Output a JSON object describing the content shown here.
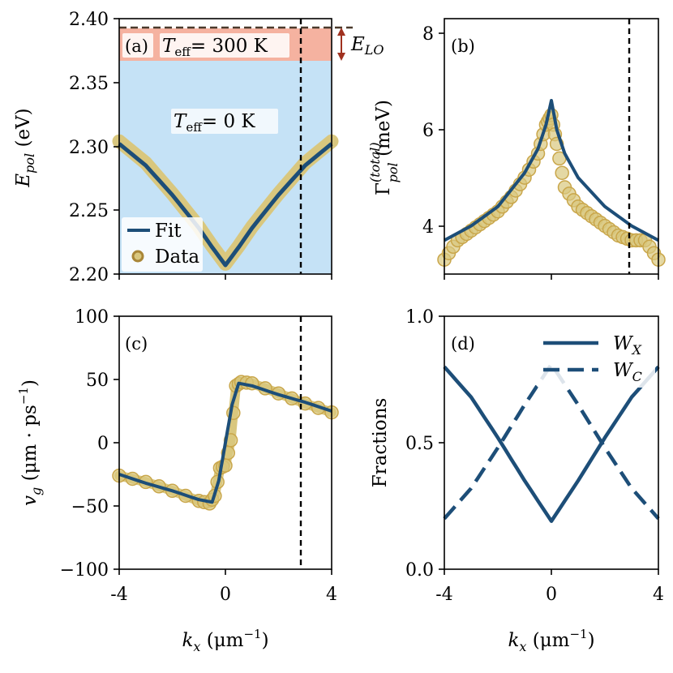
{
  "colors": {
    "fit": "#1d4e78",
    "data_fill": "#d9c77e",
    "data_edge": "#c9a64a",
    "cold_region": "#c5e2f6",
    "hot_region": "#f5b2a0",
    "arrow": "#a0311f"
  },
  "chart_data": [
    {
      "panel": "(a)",
      "type": "line",
      "xlabel": "",
      "ylabel": "E_pol (eV)",
      "xlim": [
        -4,
        4
      ],
      "ylim": [
        2.2,
        2.4
      ],
      "xticks": [
        -4,
        0,
        4
      ],
      "yticks": [
        "2.20",
        "2.25",
        "2.30",
        "2.35",
        "2.40"
      ],
      "regions": [
        {
          "name": "T_eff = 0 K",
          "ymin": 2.2,
          "ymax": 2.3705
        },
        {
          "name": "T_eff = 300 K",
          "ymin": 2.3705,
          "ymax": 2.394
        }
      ],
      "hline": 2.394,
      "vline": 2.8,
      "annotations": [
        "(a)",
        "T_eff = 300 K",
        "T_eff = 0 K",
        "E_LO"
      ],
      "legend": [
        "Fit",
        "Data"
      ],
      "legend_position": "lower-left",
      "series": [
        {
          "name": "Fit",
          "x": [
            -4,
            -3,
            -2,
            -1,
            -0.5,
            0,
            0.5,
            1,
            2,
            3,
            4
          ],
          "y": [
            2.302,
            2.285,
            2.262,
            2.236,
            2.221,
            2.207,
            2.221,
            2.236,
            2.262,
            2.285,
            2.302
          ]
        },
        {
          "name": "Data",
          "x": [
            -4,
            -3,
            -2,
            -1,
            -0.5,
            0,
            0.5,
            1,
            2,
            3,
            4
          ],
          "y": [
            2.304,
            2.287,
            2.263,
            2.237,
            2.222,
            2.208,
            2.222,
            2.237,
            2.263,
            2.287,
            2.304
          ]
        }
      ]
    },
    {
      "panel": "(b)",
      "type": "line",
      "xlabel": "",
      "ylabel": "Γ_pol^(total) (meV)",
      "xlim": [
        -4,
        4
      ],
      "ylim": [
        3,
        8.3
      ],
      "xticks": [
        -4,
        0,
        4
      ],
      "yticks": [
        "4",
        "6",
        "8"
      ],
      "vline": 2.8,
      "annotations": [
        "(b)"
      ],
      "series": [
        {
          "name": "Fit",
          "x": [
            -4,
            -3,
            -2,
            -1,
            -0.5,
            -0.2,
            0,
            0.2,
            0.5,
            1,
            2,
            3,
            4
          ],
          "y": [
            3.7,
            4.0,
            4.4,
            5.1,
            5.6,
            6.1,
            6.6,
            6.0,
            5.5,
            5.0,
            4.4,
            4.0,
            3.7
          ]
        },
        {
          "name": "Data",
          "x": [
            -4,
            -3.5,
            -3,
            -2.5,
            -2,
            -1.5,
            -1,
            -0.5,
            -0.2,
            0,
            0.2,
            0.5,
            1,
            1.5,
            2,
            2.5,
            3,
            3.5,
            4
          ],
          "y": [
            3.3,
            3.7,
            3.9,
            4.1,
            4.3,
            4.6,
            5.0,
            5.5,
            6.1,
            6.3,
            5.7,
            4.8,
            4.4,
            4.2,
            4.0,
            3.8,
            3.7,
            3.7,
            3.3
          ]
        }
      ]
    },
    {
      "panel": "(c)",
      "type": "line",
      "xlabel": "k_x (μm^-1)",
      "ylabel": "v_g (μm · ps^-1)",
      "xlim": [
        -4,
        4
      ],
      "ylim": [
        -100,
        100
      ],
      "xticks": [
        -4,
        0,
        4
      ],
      "yticks": [
        "−100",
        "−50",
        "0",
        "50",
        "100"
      ],
      "vline": 2.8,
      "annotations": [
        "(c)"
      ],
      "series": [
        {
          "name": "Fit",
          "x": [
            -4,
            -3,
            -2,
            -1,
            -0.5,
            -0.25,
            0,
            0.25,
            0.5,
            1,
            2,
            3,
            4
          ],
          "y": [
            -25,
            -32,
            -38,
            -45,
            -47,
            -30,
            0,
            30,
            47,
            45,
            38,
            32,
            25
          ]
        },
        {
          "name": "Data",
          "x": [
            -4,
            -3,
            -2,
            -1,
            -0.6,
            -0.4,
            -0.2,
            0,
            0.2,
            0.4,
            0.6,
            1,
            2,
            3,
            4
          ],
          "y": [
            -26,
            -31,
            -38,
            -46,
            -48,
            -42,
            -20,
            -18,
            2,
            45,
            48,
            47,
            39,
            31,
            24
          ]
        }
      ]
    },
    {
      "panel": "(d)",
      "type": "line",
      "xlabel": "k_x (μm^-1)",
      "ylabel": "Fractions",
      "xlim": [
        -4,
        4
      ],
      "ylim": [
        0,
        1
      ],
      "xticks": [
        -4,
        0,
        4
      ],
      "yticks": [
        "0.0",
        "0.5",
        "1.0"
      ],
      "annotations": [
        "(d)"
      ],
      "legend": [
        "W_X",
        "W_C"
      ],
      "legend_position": "upper-right",
      "series": [
        {
          "name": "W_X",
          "style": "solid",
          "x": [
            -4,
            -3,
            -2,
            -1,
            0,
            1,
            2,
            3,
            4
          ],
          "y": [
            0.8,
            0.68,
            0.52,
            0.35,
            0.19,
            0.35,
            0.52,
            0.68,
            0.8
          ]
        },
        {
          "name": "W_C",
          "style": "dashed",
          "x": [
            -4,
            -3,
            -2,
            -1,
            0,
            1,
            2,
            3,
            4
          ],
          "y": [
            0.2,
            0.32,
            0.48,
            0.65,
            0.81,
            0.65,
            0.48,
            0.32,
            0.2
          ]
        }
      ]
    }
  ]
}
